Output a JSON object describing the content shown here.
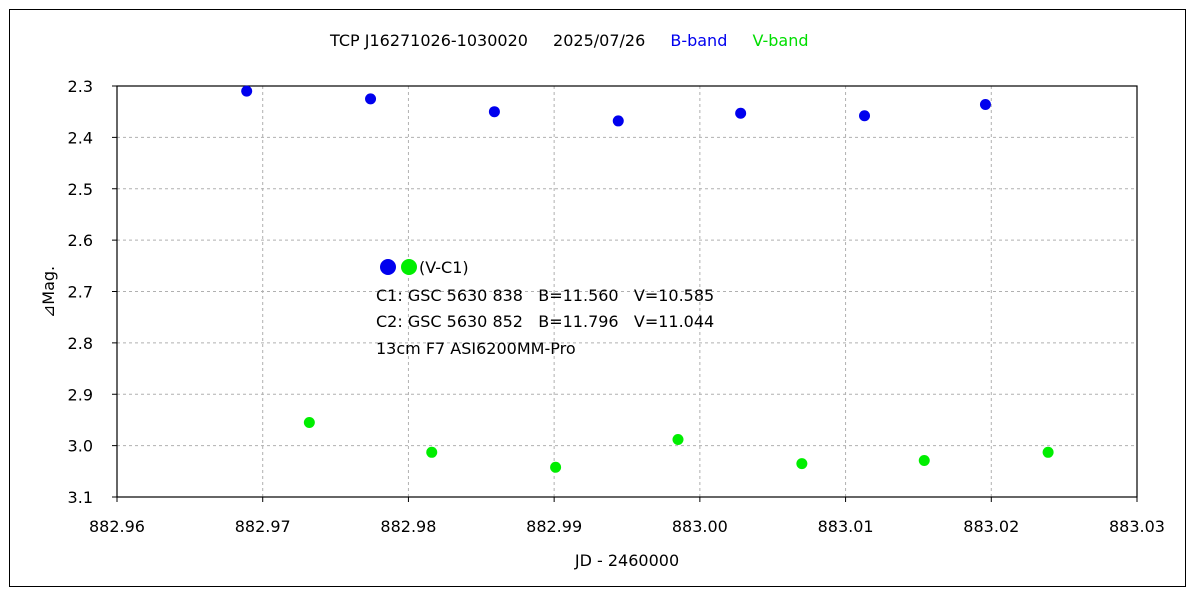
{
  "chart_data": {
    "type": "scatter",
    "title": {
      "object": "TCP J16271026-1030020",
      "date": "2025/07/26",
      "b_label": "B-band",
      "v_label": "V-band"
    },
    "xlabel": "JD - 2460000",
    "ylabel": "⊿Mag.",
    "xlim": [
      882.96,
      883.03
    ],
    "ylim": [
      2.3,
      3.1
    ],
    "y_inverted": true,
    "grid": true,
    "x_ticks": [
      "882.96",
      "882.97",
      "882.98",
      "882.99",
      "883.00",
      "883.01",
      "883.02",
      "883.03"
    ],
    "x_tick_values": [
      882.96,
      882.97,
      882.98,
      882.99,
      883.0,
      883.01,
      883.02,
      883.03
    ],
    "y_ticks": [
      "2.3",
      "2.4",
      "2.5",
      "2.6",
      "2.7",
      "2.8",
      "2.9",
      "3.0",
      "3.1"
    ],
    "y_tick_values": [
      2.3,
      2.4,
      2.5,
      2.6,
      2.7,
      2.8,
      2.9,
      3.0,
      3.1
    ],
    "series": [
      {
        "name": "B-band",
        "color": "#0000ee",
        "x": [
          882.9689,
          882.9774,
          882.9859,
          882.9944,
          883.0028,
          883.0113,
          883.0196
        ],
        "y": [
          2.31,
          2.325,
          2.35,
          2.368,
          2.353,
          2.358,
          2.336
        ]
      },
      {
        "name": "V-band",
        "color": "#00ee00",
        "x": [
          882.9732,
          882.9816,
          882.9901,
          882.9985,
          883.007,
          883.0154,
          883.0239
        ],
        "y": [
          2.955,
          3.013,
          3.042,
          2.988,
          3.035,
          3.029,
          3.013
        ]
      }
    ],
    "annotation": {
      "marker_colors": [
        "#0000ee",
        "#00ee00"
      ],
      "marker_label": "(V-C1)",
      "lines": [
        "C1: GSC 5630 838   B=11.560   V=10.585",
        "C2: GSC 5630 852   B=11.796   V=11.044",
        "13cm F7 ASI6200MM-Pro"
      ]
    }
  }
}
